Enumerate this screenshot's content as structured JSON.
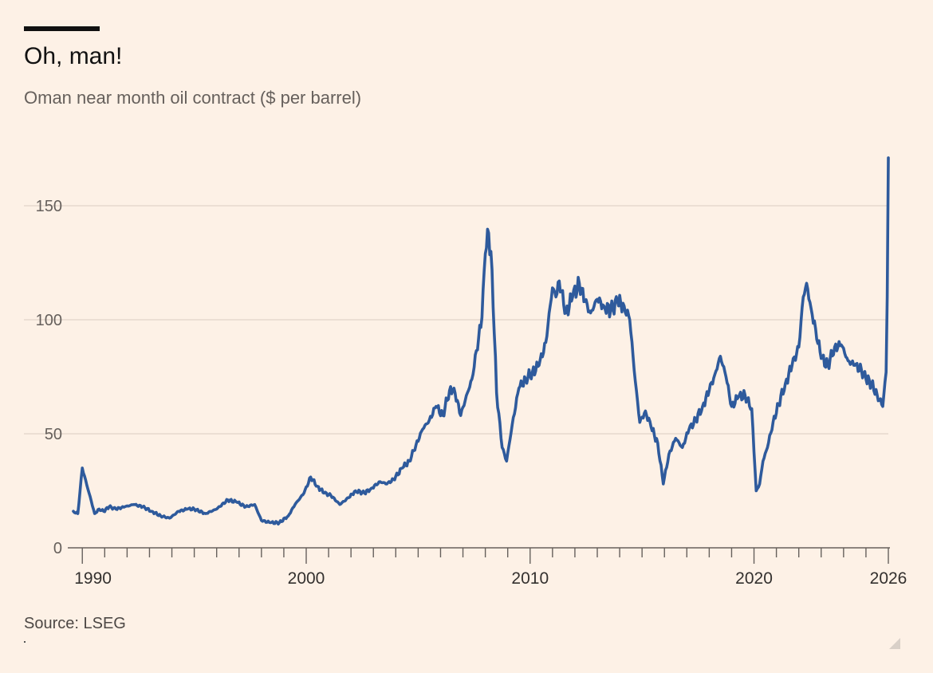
{
  "header": {
    "title": "Oh, man!",
    "subtitle": "Oman near month oil contract ($ per barrel)"
  },
  "footer": {
    "source": "Source: LSEG"
  },
  "colors": {
    "line": "#2e5a9c",
    "background": "#fdf1e6",
    "grid": "#e6d9ce"
  },
  "chart_data": {
    "type": "line",
    "title": "Oh, man!",
    "subtitle": "Oman near month oil contract ($ per barrel)",
    "xlabel": "",
    "ylabel": "",
    "xlim": [
      1989.6,
      2026.0
    ],
    "ylim": [
      0,
      175
    ],
    "yticks": [
      0,
      50,
      100,
      150
    ],
    "ytick_labels": [
      "0",
      "50",
      "100",
      "150"
    ],
    "xticks_labeled": [
      1990,
      2000,
      2010,
      2020,
      2026
    ],
    "xtick_labels": [
      "1990",
      "2000",
      "2010",
      "2020",
      "2026"
    ],
    "grid": true,
    "legend": "none",
    "series": [
      {
        "name": "Oman near month oil contract",
        "x": [
          1989.6,
          1989.8,
          1990.0,
          1990.3,
          1990.55,
          1990.75,
          1990.95,
          1991.2,
          1991.5,
          1991.9,
          1992.3,
          1992.7,
          1993.1,
          1993.5,
          1993.9,
          1994.3,
          1994.7,
          1995.0,
          1995.5,
          1996.0,
          1996.5,
          1996.9,
          1997.3,
          1997.7,
          1998.0,
          1998.4,
          1998.8,
          1999.2,
          1999.5,
          1999.9,
          2000.2,
          2000.5,
          2000.8,
          2001.1,
          2001.5,
          2001.9,
          2002.2,
          2002.6,
          2002.9,
          2003.3,
          2003.6,
          2003.9,
          2004.3,
          2004.6,
          2004.9,
          2005.2,
          2005.5,
          2005.8,
          2006.1,
          2006.4,
          2006.6,
          2006.9,
          2007.2,
          2007.4,
          2007.7,
          2007.85,
          2008.0,
          2008.15,
          2008.3,
          2008.5,
          2008.75,
          2008.95,
          2009.2,
          2009.5,
          2009.8,
          2010.1,
          2010.4,
          2010.7,
          2011.0,
          2011.15,
          2011.3,
          2011.6,
          2011.9,
          2012.2,
          2012.45,
          2012.7,
          2013.0,
          2013.3,
          2013.6,
          2013.9,
          2014.2,
          2014.45,
          2014.7,
          2014.9,
          2015.15,
          2015.4,
          2015.7,
          2015.95,
          2016.2,
          2016.5,
          2016.8,
          2017.1,
          2017.4,
          2017.7,
          2018.0,
          2018.25,
          2018.5,
          2018.75,
          2019.0,
          2019.3,
          2019.6,
          2019.9,
          2020.1,
          2020.25,
          2020.4,
          2020.6,
          2020.85,
          2021.1,
          2021.4,
          2021.7,
          2022.0,
          2022.2,
          2022.35,
          2022.55,
          2022.75,
          2023.0,
          2023.3,
          2023.6,
          2023.9,
          2024.2,
          2024.5,
          2024.8,
          2025.0,
          2025.25,
          2025.5,
          2025.75,
          2025.9,
          2025.95,
          2026.0
        ],
        "values": [
          16,
          15,
          35,
          24,
          15,
          17,
          16,
          18,
          17,
          18,
          19,
          18,
          16,
          14,
          13,
          16,
          17,
          17,
          15,
          17,
          21,
          20,
          18,
          19,
          12,
          11,
          11,
          14,
          19,
          24,
          31,
          27,
          24,
          23,
          19,
          22,
          25,
          24,
          26,
          29,
          28,
          30,
          35,
          38,
          45,
          52,
          56,
          62,
          58,
          69,
          70,
          58,
          68,
          74,
          92,
          101,
          129,
          138,
          122,
          68,
          44,
          38,
          54,
          70,
          74,
          77,
          80,
          90,
          114,
          110,
          117,
          103,
          110,
          116,
          108,
          103,
          109,
          106,
          104,
          108,
          106,
          100,
          73,
          55,
          60,
          53,
          46,
          28,
          41,
          48,
          44,
          52,
          56,
          62,
          69,
          76,
          84,
          75,
          62,
          66,
          67,
          61,
          25,
          28,
          38,
          44,
          55,
          63,
          72,
          80,
          88,
          110,
          116,
          105,
          96,
          83,
          80,
          88,
          89,
          82,
          80,
          78,
          74,
          72,
          67,
          62,
          77,
          110,
          171
        ]
      }
    ]
  }
}
